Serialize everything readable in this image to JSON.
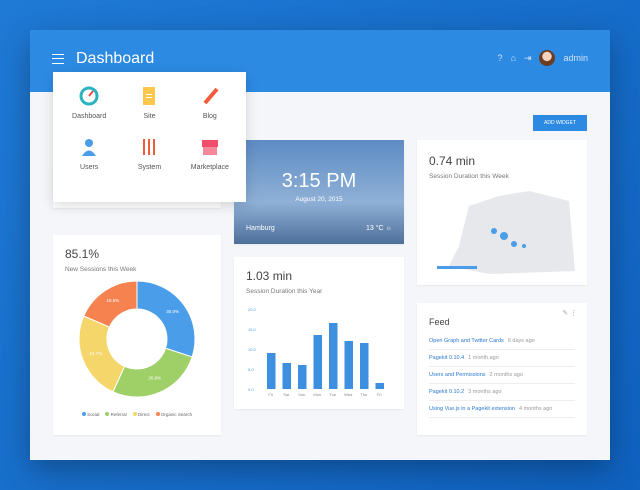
{
  "header": {
    "title": "Dashboard",
    "user": "admin"
  },
  "menu": [
    {
      "label": "Dashboard",
      "icon": "speedometer-icon"
    },
    {
      "label": "Site",
      "icon": "document-icon"
    },
    {
      "label": "Blog",
      "icon": "pencil-icon"
    },
    {
      "label": "Users",
      "icon": "user-icon"
    },
    {
      "label": "System",
      "icon": "sliders-icon"
    },
    {
      "label": "Marketplace",
      "icon": "store-icon"
    }
  ],
  "add_widget": "ADD WIDGET",
  "clock": {
    "time": "3:15 PM",
    "date": "August 20, 2015",
    "city": "Hamburg",
    "temp": "13 °C"
  },
  "map": {
    "value": "0.74 min",
    "label": "Session Duration this Week"
  },
  "pie": {
    "value": "85.1%",
    "label": "New Sessions this Week"
  },
  "chart_data": [
    {
      "type": "pie",
      "categories": [
        "Social",
        "Referral",
        "Direct",
        "Organic Search"
      ],
      "values": [
        30.0,
        26.8,
        24.7,
        18.5
      ],
      "colors": [
        "#4a9de8",
        "#9fd067",
        "#f5d66b",
        "#f6834f"
      ]
    },
    {
      "type": "bar",
      "title": "1.03 min",
      "subtitle": "Session Duration this Year",
      "categories": [
        "Fri",
        "Sat",
        "Sun",
        "Mon",
        "Tue",
        "Wed",
        "Thu",
        "Fri"
      ],
      "values": [
        9,
        6.5,
        6,
        13.5,
        16.5,
        12,
        11.5,
        1.5
      ],
      "yticks": [
        "0.0",
        "5.0",
        "10.0",
        "15.0",
        "20.0"
      ],
      "ylim": [
        0,
        20
      ]
    }
  ],
  "feed": {
    "title": "Feed",
    "items": [
      {
        "t": "Open Graph and Twitter Cards",
        "d": "6 days ago"
      },
      {
        "t": "Pagekit 0.10.4",
        "d": "1 month ago"
      },
      {
        "t": "Users and Permissions",
        "d": "2 months ago"
      },
      {
        "t": "Pagekit 0.10.2",
        "d": "3 months ago"
      },
      {
        "t": "Using Vue.js in a Pagekit extension",
        "d": "4 months ago"
      }
    ]
  }
}
